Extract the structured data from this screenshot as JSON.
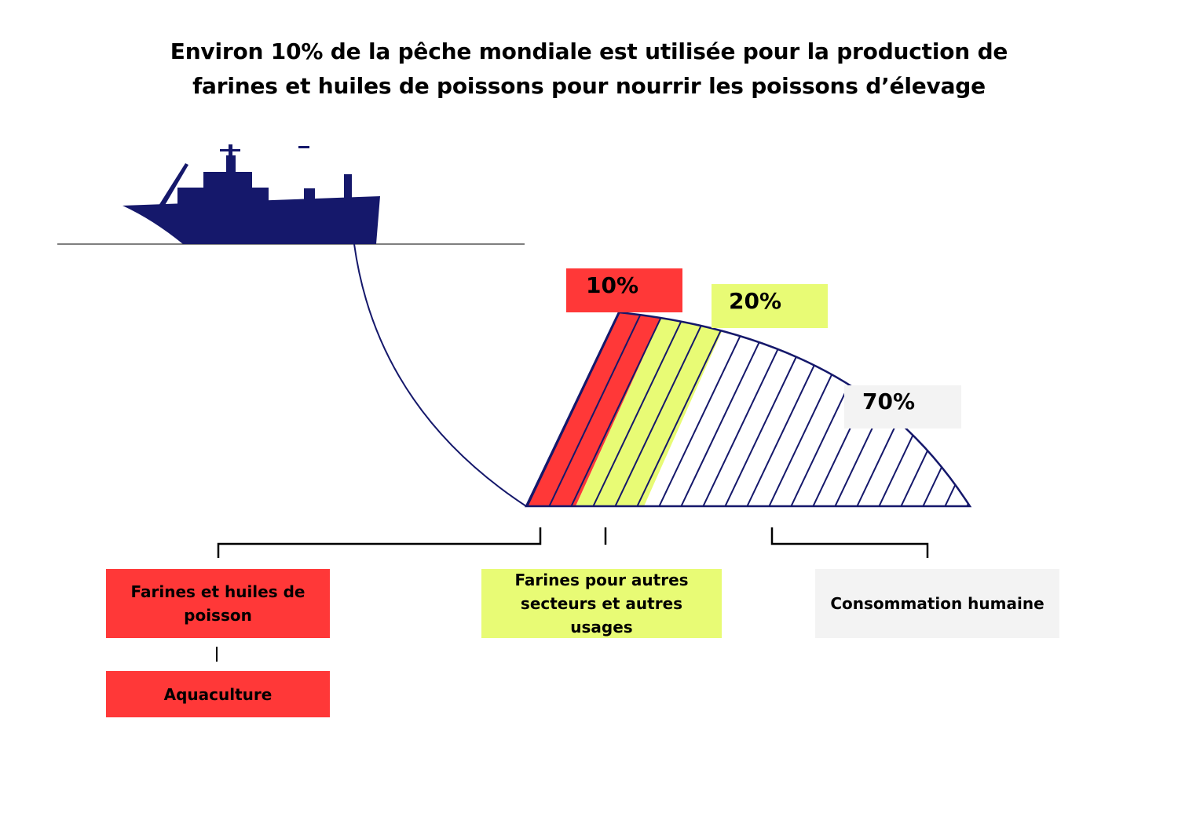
{
  "title": {
    "line1": "Environ 10% de la pêche mondiale est utilisée pour la production de",
    "line2": "farines et huiles de poissons pour nourrir les poissons d’élevage"
  },
  "shares": [
    {
      "label": "10%",
      "value": 10,
      "color": "#ff3838"
    },
    {
      "label": "20%",
      "value": 20,
      "color": "#e8fb75"
    },
    {
      "label": "70%",
      "value": 70,
      "color": "#f3f3f3"
    }
  ],
  "boxes": {
    "fish_meal": "Farines et huiles de poisson",
    "aquaculture": "Aquaculture",
    "other_uses": "Farines pour autres secteurs et autres usages",
    "human": "Consommation humaine"
  },
  "colors": {
    "navy": "#15186b",
    "red": "#ff3838",
    "lime": "#e8fb75",
    "grey": "#f3f3f3"
  },
  "icons": {
    "ship": "fishing-boat-icon"
  }
}
